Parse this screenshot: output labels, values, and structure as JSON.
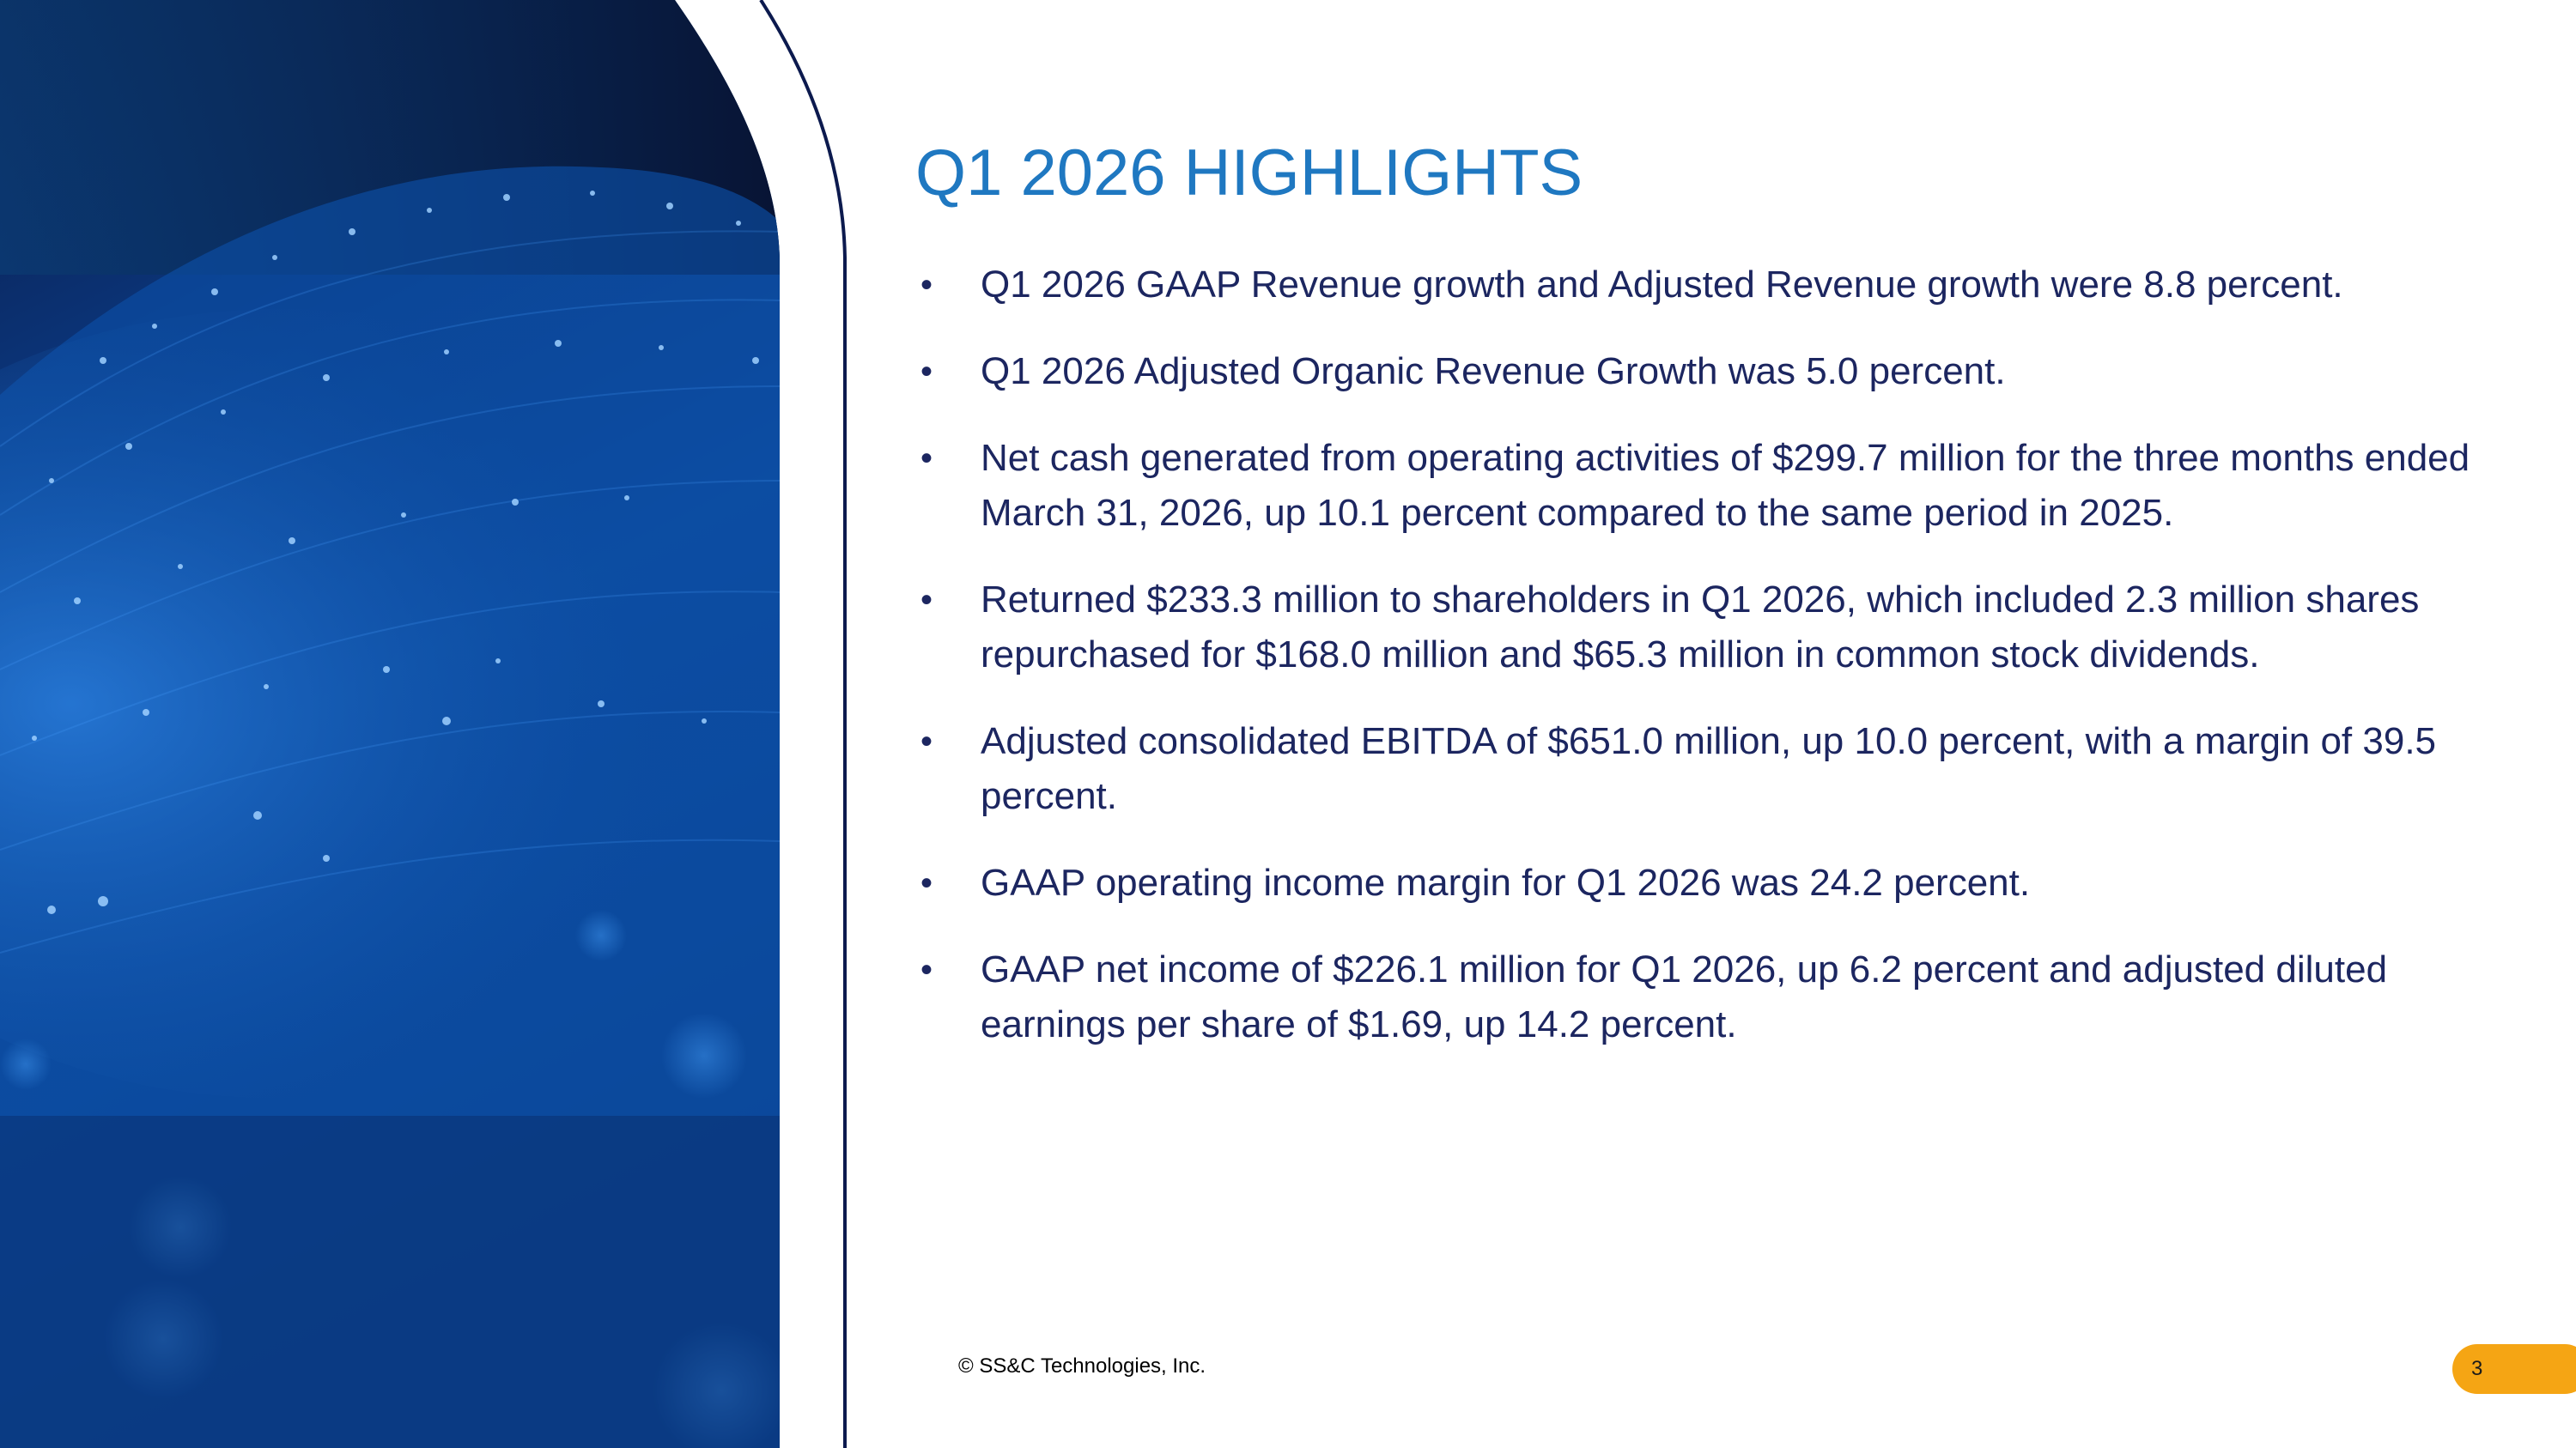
{
  "slide": {
    "title": "Q1 2026 HIGHLIGHTS",
    "bullet_symbol": "•",
    "bullets": [
      "Q1 2026 GAAP Revenue growth and Adjusted Revenue growth were 8.8 percent.",
      "Q1 2026 Adjusted Organic Revenue Growth was 5.0 percent.",
      "Net cash generated from operating activities of $299.7 million for the three months ended March 31, 2026, up 10.1 percent compared to the same period in 2025.",
      "Returned $233.3 million to shareholders in Q1 2026, which included 2.3 million shares repurchased for $168.0 million and $65.3 million in common stock dividends.",
      "Adjusted consolidated EBITDA of $651.0 million, up 10.0 percent, with a margin of 39.5 percent.",
      "GAAP operating income margin for Q1 2026 was 24.2 percent.",
      "GAAP net income of $226.1 million for Q1 2026, up 6.2 percent and adjusted diluted earnings per share of $1.69, up 14.2 percent."
    ],
    "footer": "© SS&C Technologies, Inc.",
    "page_number": "3"
  },
  "colors": {
    "title": "#1f78c1",
    "body_text": "#1c2660",
    "accent_orange": "#f5a514",
    "divider_navy": "#0c1a4e",
    "art_dark": "#08173f",
    "art_blue": "#0d5bb8"
  }
}
